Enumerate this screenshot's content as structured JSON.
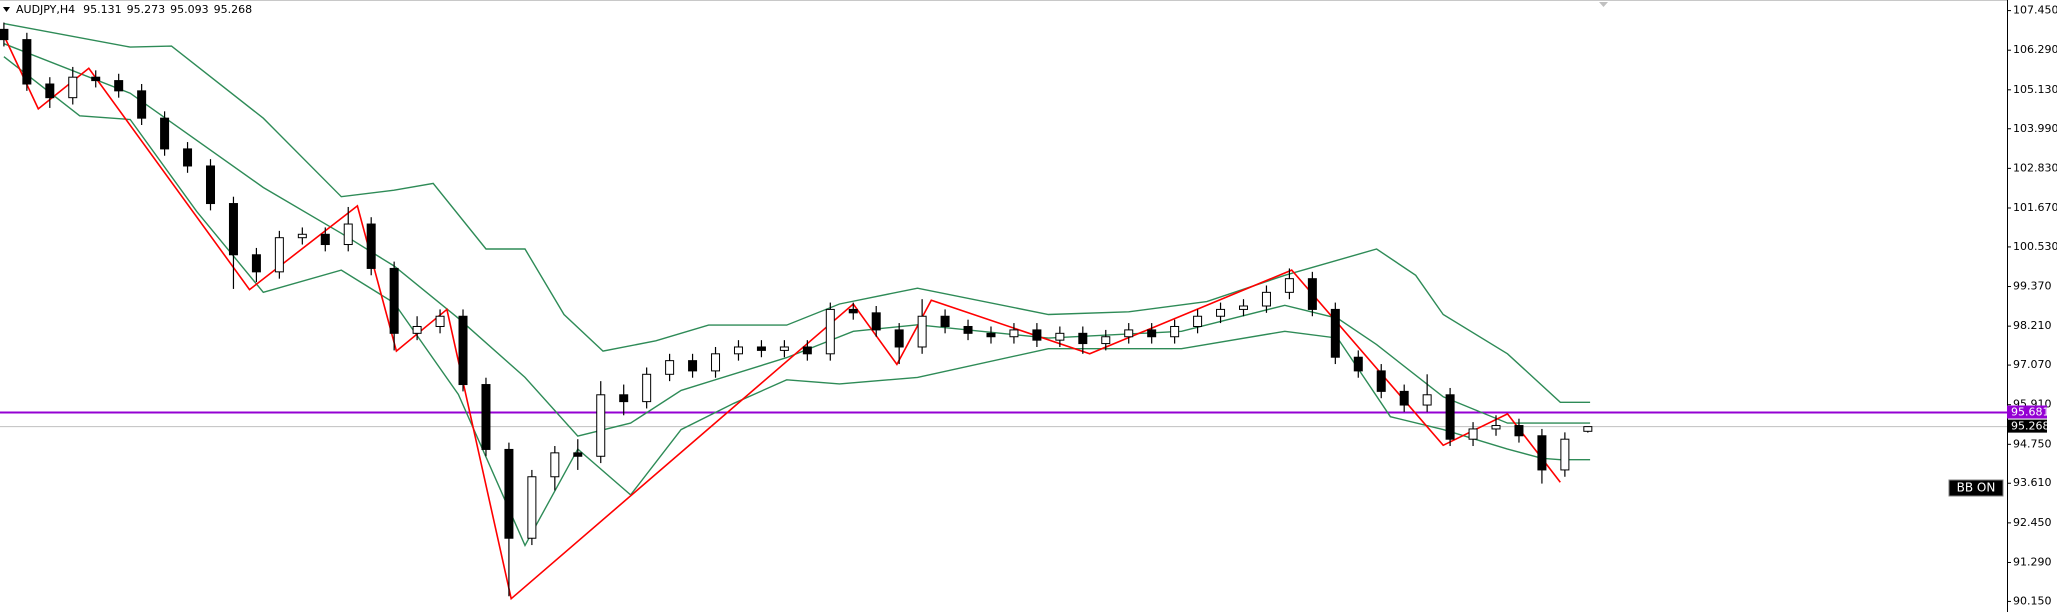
{
  "chart_data": {
    "type": "candlestick",
    "title": "AUDJPY,H4",
    "x": [
      0,
      1,
      2,
      3,
      4,
      5,
      6,
      7,
      8,
      9,
      10,
      11,
      12,
      13,
      14,
      15,
      16,
      17,
      18,
      19,
      20,
      21,
      22,
      23,
      24,
      25,
      26,
      27,
      28,
      29,
      30,
      31,
      32,
      33,
      34,
      35,
      36,
      37,
      38,
      39,
      40,
      41,
      42,
      43,
      44,
      45,
      46,
      47,
      48,
      49,
      50,
      51,
      52,
      53,
      54,
      55,
      56,
      57,
      58,
      59,
      60,
      61,
      62,
      63,
      64,
      65,
      66,
      67,
      68,
      69
    ],
    "open": [
      106.9,
      106.6,
      105.3,
      104.9,
      105.5,
      105.4,
      105.1,
      104.3,
      103.4,
      102.9,
      101.8,
      100.3,
      99.8,
      100.8,
      100.9,
      100.6,
      101.2,
      99.9,
      98.0,
      98.2,
      98.5,
      96.5,
      94.6,
      92.0,
      93.8,
      94.5,
      94.4,
      96.2,
      96.0,
      96.8,
      97.2,
      96.9,
      97.4,
      97.6,
      97.5,
      97.6,
      97.4,
      98.7,
      98.6,
      98.1,
      97.6,
      98.5,
      98.2,
      98.0,
      97.9,
      98.1,
      97.8,
      98.0,
      97.7,
      97.9,
      98.1,
      97.9,
      98.2,
      98.5,
      98.7,
      98.8,
      99.2,
      99.6,
      98.7,
      97.3,
      96.9,
      96.3,
      95.9,
      96.2,
      94.9,
      95.2,
      95.3,
      95.0,
      94.0,
      95.131
    ],
    "high": [
      107.1,
      106.8,
      105.5,
      105.8,
      105.7,
      105.6,
      105.3,
      104.5,
      103.6,
      103.1,
      102.0,
      100.5,
      101.0,
      101.1,
      101.1,
      101.7,
      101.4,
      100.1,
      98.5,
      98.7,
      98.7,
      96.7,
      94.8,
      94.0,
      94.7,
      94.9,
      96.6,
      96.5,
      97.0,
      97.4,
      97.4,
      97.6,
      97.8,
      97.8,
      97.8,
      97.8,
      98.9,
      98.9,
      98.8,
      98.3,
      99.0,
      98.7,
      98.4,
      98.2,
      98.3,
      98.3,
      98.2,
      98.2,
      98.1,
      98.3,
      98.3,
      98.4,
      98.7,
      98.9,
      99.0,
      99.4,
      99.9,
      99.8,
      98.9,
      97.5,
      97.1,
      96.5,
      96.8,
      96.4,
      95.4,
      95.6,
      95.5,
      95.2,
      95.1,
      95.273
    ],
    "low": [
      106.4,
      105.1,
      104.6,
      104.7,
      105.2,
      104.9,
      104.1,
      103.2,
      102.7,
      101.6,
      99.3,
      99.5,
      99.6,
      100.6,
      100.4,
      100.4,
      99.7,
      97.5,
      97.8,
      98.0,
      96.3,
      94.4,
      90.3,
      91.8,
      93.4,
      94.0,
      94.2,
      95.6,
      95.8,
      96.6,
      96.7,
      96.7,
      97.2,
      97.3,
      97.3,
      97.2,
      97.2,
      98.4,
      97.9,
      97.1,
      97.4,
      98.0,
      97.8,
      97.7,
      97.7,
      97.6,
      97.6,
      97.4,
      97.5,
      97.7,
      97.7,
      97.7,
      98.0,
      98.3,
      98.5,
      98.6,
      99.0,
      98.5,
      97.1,
      96.7,
      96.1,
      95.7,
      95.7,
      94.7,
      94.7,
      95.0,
      94.8,
      93.6,
      93.8,
      95.093
    ],
    "close": [
      106.6,
      105.3,
      104.9,
      105.5,
      105.4,
      105.1,
      104.3,
      103.4,
      102.9,
      101.8,
      100.3,
      99.8,
      100.8,
      100.9,
      100.6,
      101.2,
      99.9,
      98.0,
      98.2,
      98.5,
      96.5,
      94.6,
      92.0,
      93.8,
      94.5,
      94.4,
      96.2,
      96.0,
      96.8,
      97.2,
      96.9,
      97.4,
      97.6,
      97.5,
      97.6,
      97.4,
      98.7,
      98.6,
      98.1,
      97.6,
      98.5,
      98.2,
      98.0,
      97.9,
      98.1,
      97.8,
      98.0,
      97.7,
      97.9,
      98.1,
      97.9,
      98.2,
      98.5,
      98.7,
      98.8,
      99.2,
      99.6,
      98.7,
      97.3,
      96.9,
      96.3,
      95.9,
      96.2,
      94.9,
      95.2,
      95.3,
      95.0,
      94.0,
      94.9,
      95.268
    ],
    "up_color": "#ffffff",
    "down_color": "#000000",
    "overlays": [
      {
        "color": "#2e8b57",
        "x": [
          0,
          5.5,
          7.3,
          11.3,
          14.7,
          17.0,
          18.7,
          21.0,
          22.7,
          24.4,
          26.1,
          28.4,
          30.7,
          34.1,
          36.4,
          39.8,
          45.5,
          49.0,
          52.4,
          55.8,
          59.8,
          61.5,
          62.7,
          65.5,
          67.8,
          69.1
        ],
        "values": [
          107.07,
          106.38,
          106.41,
          104.3,
          102.0,
          102.19,
          102.39,
          100.47,
          100.47,
          98.55,
          97.48,
          97.78,
          98.24,
          98.24,
          98.86,
          99.32,
          98.55,
          98.63,
          98.93,
          99.7,
          100.47,
          99.7,
          98.55,
          97.4,
          95.98,
          95.98
        ]
      },
      {
        "color": "#2e8b57",
        "x": [
          0,
          5.5,
          11.3,
          14.7,
          17.0,
          19.8,
          22.7,
          25.0,
          27.3,
          29.5,
          34.1,
          37.0,
          39.8,
          45.5,
          51.3,
          55.8,
          58.1,
          59.8,
          62.7,
          65.5,
          69.1
        ],
        "values": [
          106.48,
          105.03,
          102.27,
          100.93,
          99.97,
          98.44,
          96.71,
          94.99,
          95.37,
          96.33,
          97.29,
          98.06,
          98.25,
          97.86,
          98.06,
          98.82,
          98.44,
          97.67,
          96.14,
          95.37,
          95.37
        ]
      },
      {
        "color": "#2e8b57",
        "x": [
          0,
          3.3,
          5.5,
          8.4,
          11.3,
          14.7,
          17.0,
          19.8,
          22.7,
          25.0,
          27.3,
          29.5,
          31.8,
          34.1,
          36.4,
          39.8,
          45.5,
          51.3,
          55.8,
          58.1,
          60.4,
          62.7,
          65.5,
          67.0,
          67.8,
          69.1
        ],
        "values": [
          106.1,
          104.37,
          104.26,
          101.57,
          99.2,
          99.85,
          98.89,
          96.21,
          91.79,
          94.61,
          93.27,
          95.18,
          95.95,
          96.64,
          96.52,
          96.71,
          97.55,
          97.55,
          98.06,
          97.86,
          95.56,
          95.18,
          94.61,
          94.34,
          94.3,
          94.3
        ]
      },
      {
        "color": "#ff0000",
        "x": [
          0,
          1.5,
          3.7,
          10.7,
          15.4,
          17.1,
          19.3,
          22.1,
          37.0,
          38.9,
          40.4,
          47.3,
          56.1,
          62.7,
          65.5,
          67.8
        ],
        "values": [
          106.72,
          104.57,
          105.76,
          99.28,
          101.73,
          97.48,
          98.7,
          90.23,
          98.86,
          97.09,
          98.97,
          97.4,
          99.85,
          94.72,
          95.64,
          93.64
        ]
      }
    ],
    "hline": {
      "value": 95.681,
      "color": "#9400d3"
    },
    "price_line_color": "#c0c0c0",
    "annotation": "BB ON",
    "xlim": [
      -0.17,
      87.26
    ],
    "ylim": [
      89.84,
      107.76
    ],
    "yticks": [
      {
        "value": 107.45,
        "label": "107.450"
      },
      {
        "value": 106.29,
        "label": "106.290"
      },
      {
        "value": 105.13,
        "label": "105.130"
      },
      {
        "value": 103.99,
        "label": "103.990"
      },
      {
        "value": 102.83,
        "label": "102.830"
      },
      {
        "value": 101.67,
        "label": "101.670"
      },
      {
        "value": 100.53,
        "label": "100.530"
      },
      {
        "value": 99.37,
        "label": "99.370"
      },
      {
        "value": 98.21,
        "label": "98.210"
      },
      {
        "value": 97.07,
        "label": "97.070"
      },
      {
        "value": 95.91,
        "label": "95.910"
      },
      {
        "value": 94.75,
        "label": "94.750"
      },
      {
        "value": 93.61,
        "label": "93.610"
      },
      {
        "value": 92.45,
        "label": "92.450"
      },
      {
        "value": 91.29,
        "label": "91.290"
      },
      {
        "value": 90.15,
        "label": "90.150"
      }
    ]
  }
}
